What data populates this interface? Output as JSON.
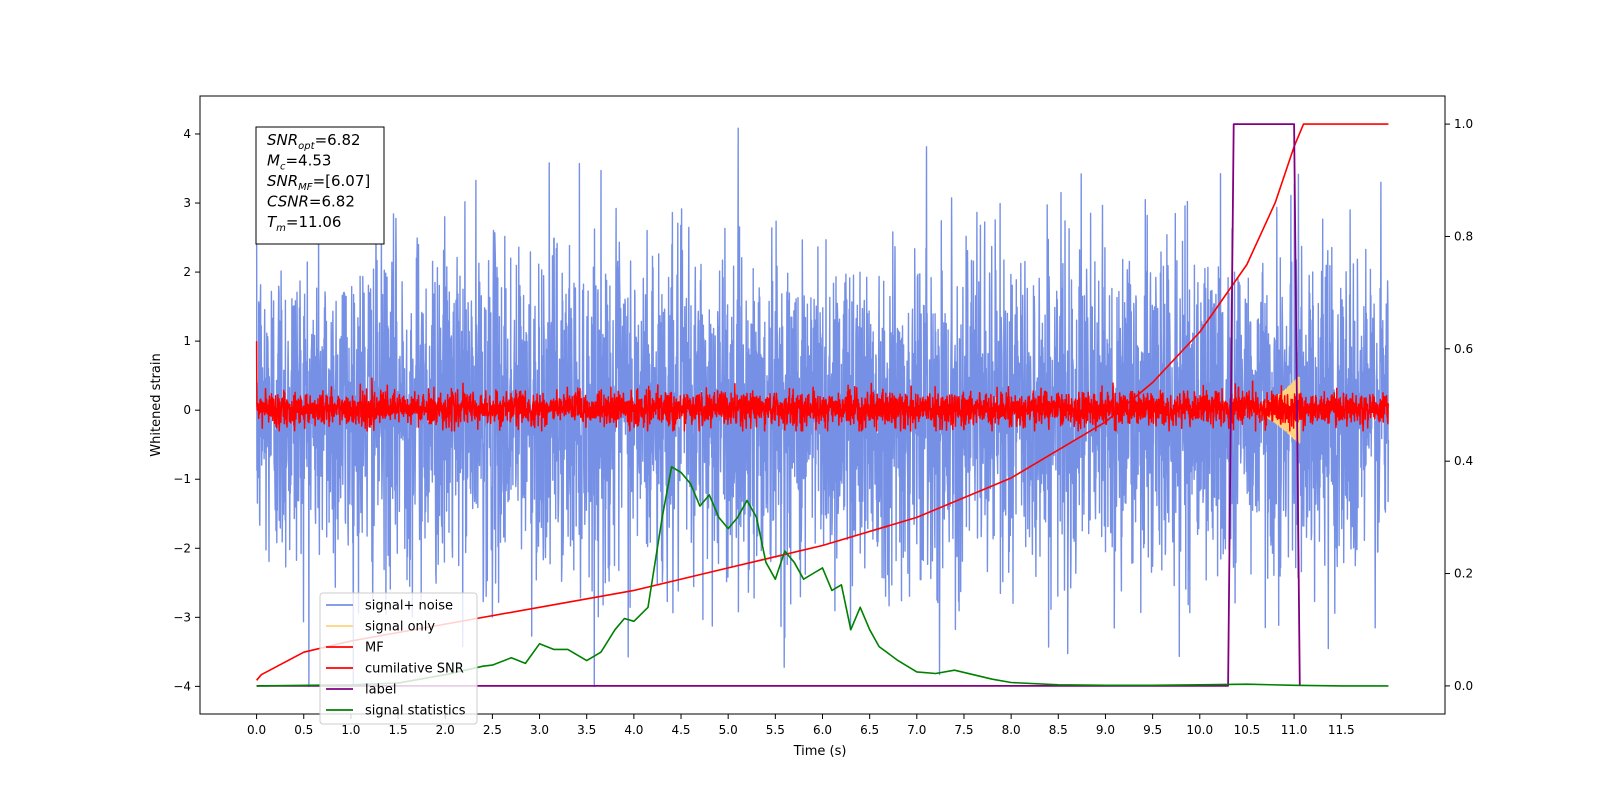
{
  "chart_data": {
    "type": "line",
    "xlabel": "Time (s)",
    "ylabel": "Whitened strain",
    "xlim": [
      -0.6,
      12.6
    ],
    "ylim": [
      -4.4,
      4.55
    ],
    "ylim_right": [
      -0.05,
      1.05
    ],
    "xticks": [
      "0.0",
      "0.5",
      "1.0",
      "1.5",
      "2.0",
      "2.5",
      "3.0",
      "3.5",
      "4.0",
      "4.5",
      "5.0",
      "5.5",
      "6.0",
      "6.5",
      "7.0",
      "7.5",
      "8.0",
      "8.5",
      "9.0",
      "9.5",
      "10.0",
      "10.5",
      "11.0",
      "11.5"
    ],
    "yticks": [
      "4",
      "3",
      "2",
      "1",
      "0",
      "−1",
      "−2",
      "−3",
      "−4"
    ],
    "yticks_right": [
      "1.0",
      "0.8",
      "0.6",
      "0.4",
      "0.2",
      "0.0"
    ],
    "annotation": {
      "lines": [
        {
          "base": "SNR",
          "sub": "opt",
          "value": "=6.82"
        },
        {
          "base": "M",
          "sub": "c",
          "value": "=4.53"
        },
        {
          "base": "SNR",
          "sub": "MF",
          "value": "=[6.07]"
        },
        {
          "base": "CSNR",
          "sub": "",
          "value": "=6.82"
        },
        {
          "base": "T",
          "sub": "m",
          "value": "=11.06"
        }
      ]
    },
    "legend": {
      "placement": "lower-left",
      "entries": [
        {
          "label": "signal+ noise",
          "color": "#7590e5"
        },
        {
          "label": "signal only",
          "color": "#ffd280"
        },
        {
          "label": "MF",
          "color": "#ff0000"
        },
        {
          "label": "cumilative SNR",
          "color": "#ff0000"
        },
        {
          "label": "label",
          "color": "#800080"
        },
        {
          "label": "signal statistics",
          "color": "#008000"
        }
      ]
    },
    "series": [
      {
        "name": "signal+ noise",
        "axis": "left",
        "color": "#7590e5",
        "kind": "noise",
        "x_range": [
          0.0,
          12.0
        ],
        "typical_range": [
          -2.5,
          2.5
        ],
        "extremes": [
          -4.0,
          4.15
        ]
      },
      {
        "name": "signal only",
        "axis": "left",
        "color": "#ffd280",
        "kind": "chirp",
        "x_range": [
          10.5,
          11.06
        ],
        "peak_amplitude": 0.5
      },
      {
        "name": "MF",
        "axis": "left",
        "color": "#ff0000",
        "kind": "noise",
        "x_range": [
          0.0,
          12.0
        ],
        "start_value": 1.0,
        "typical_range": [
          -0.25,
          0.3
        ],
        "extremes": [
          -0.3,
          0.6
        ]
      },
      {
        "name": "cumilative SNR",
        "axis": "right",
        "color": "#ff0000",
        "kind": "line",
        "x": [
          0.0,
          0.05,
          0.5,
          1.0,
          2.0,
          3.0,
          4.0,
          5.0,
          6.0,
          7.0,
          8.0,
          8.5,
          9.0,
          9.5,
          10.0,
          10.5,
          10.8,
          11.0,
          11.1,
          12.0
        ],
        "y": [
          0.01,
          0.02,
          0.06,
          0.08,
          0.11,
          0.14,
          0.17,
          0.21,
          0.25,
          0.3,
          0.37,
          0.42,
          0.47,
          0.54,
          0.63,
          0.75,
          0.86,
          0.96,
          1.0,
          1.0
        ]
      },
      {
        "name": "label",
        "axis": "right",
        "color": "#800080",
        "kind": "line",
        "x": [
          0.0,
          10.3,
          10.36,
          11.0,
          11.06
        ],
        "y": [
          0.0,
          0.0,
          1.0,
          1.0,
          0.0
        ]
      },
      {
        "name": "signal statistics",
        "axis": "right",
        "color": "#008000",
        "kind": "line",
        "x": [
          0.0,
          1.0,
          1.5,
          2.0,
          2.4,
          2.5,
          2.7,
          2.85,
          3.0,
          3.15,
          3.3,
          3.5,
          3.65,
          3.8,
          3.9,
          4.0,
          4.15,
          4.3,
          4.4,
          4.5,
          4.6,
          4.7,
          4.8,
          4.9,
          5.0,
          5.1,
          5.2,
          5.3,
          5.4,
          5.5,
          5.6,
          5.7,
          5.8,
          5.9,
          6.0,
          6.1,
          6.2,
          6.3,
          6.4,
          6.5,
          6.6,
          6.8,
          7.0,
          7.2,
          7.4,
          7.6,
          7.8,
          8.0,
          8.5,
          9.0,
          9.5,
          10.0,
          10.5,
          11.0,
          11.5,
          12.0
        ],
        "y": [
          0.0,
          0.002,
          0.005,
          0.02,
          0.035,
          0.037,
          0.05,
          0.04,
          0.075,
          0.065,
          0.065,
          0.045,
          0.06,
          0.1,
          0.12,
          0.115,
          0.14,
          0.3,
          0.39,
          0.38,
          0.36,
          0.32,
          0.34,
          0.3,
          0.28,
          0.3,
          0.33,
          0.3,
          0.22,
          0.19,
          0.24,
          0.22,
          0.19,
          0.2,
          0.21,
          0.17,
          0.18,
          0.1,
          0.14,
          0.1,
          0.07,
          0.045,
          0.025,
          0.022,
          0.028,
          0.02,
          0.012,
          0.006,
          0.002,
          0.001,
          0.001,
          0.002,
          0.003,
          0.001,
          0.0,
          0.0
        ]
      }
    ]
  }
}
